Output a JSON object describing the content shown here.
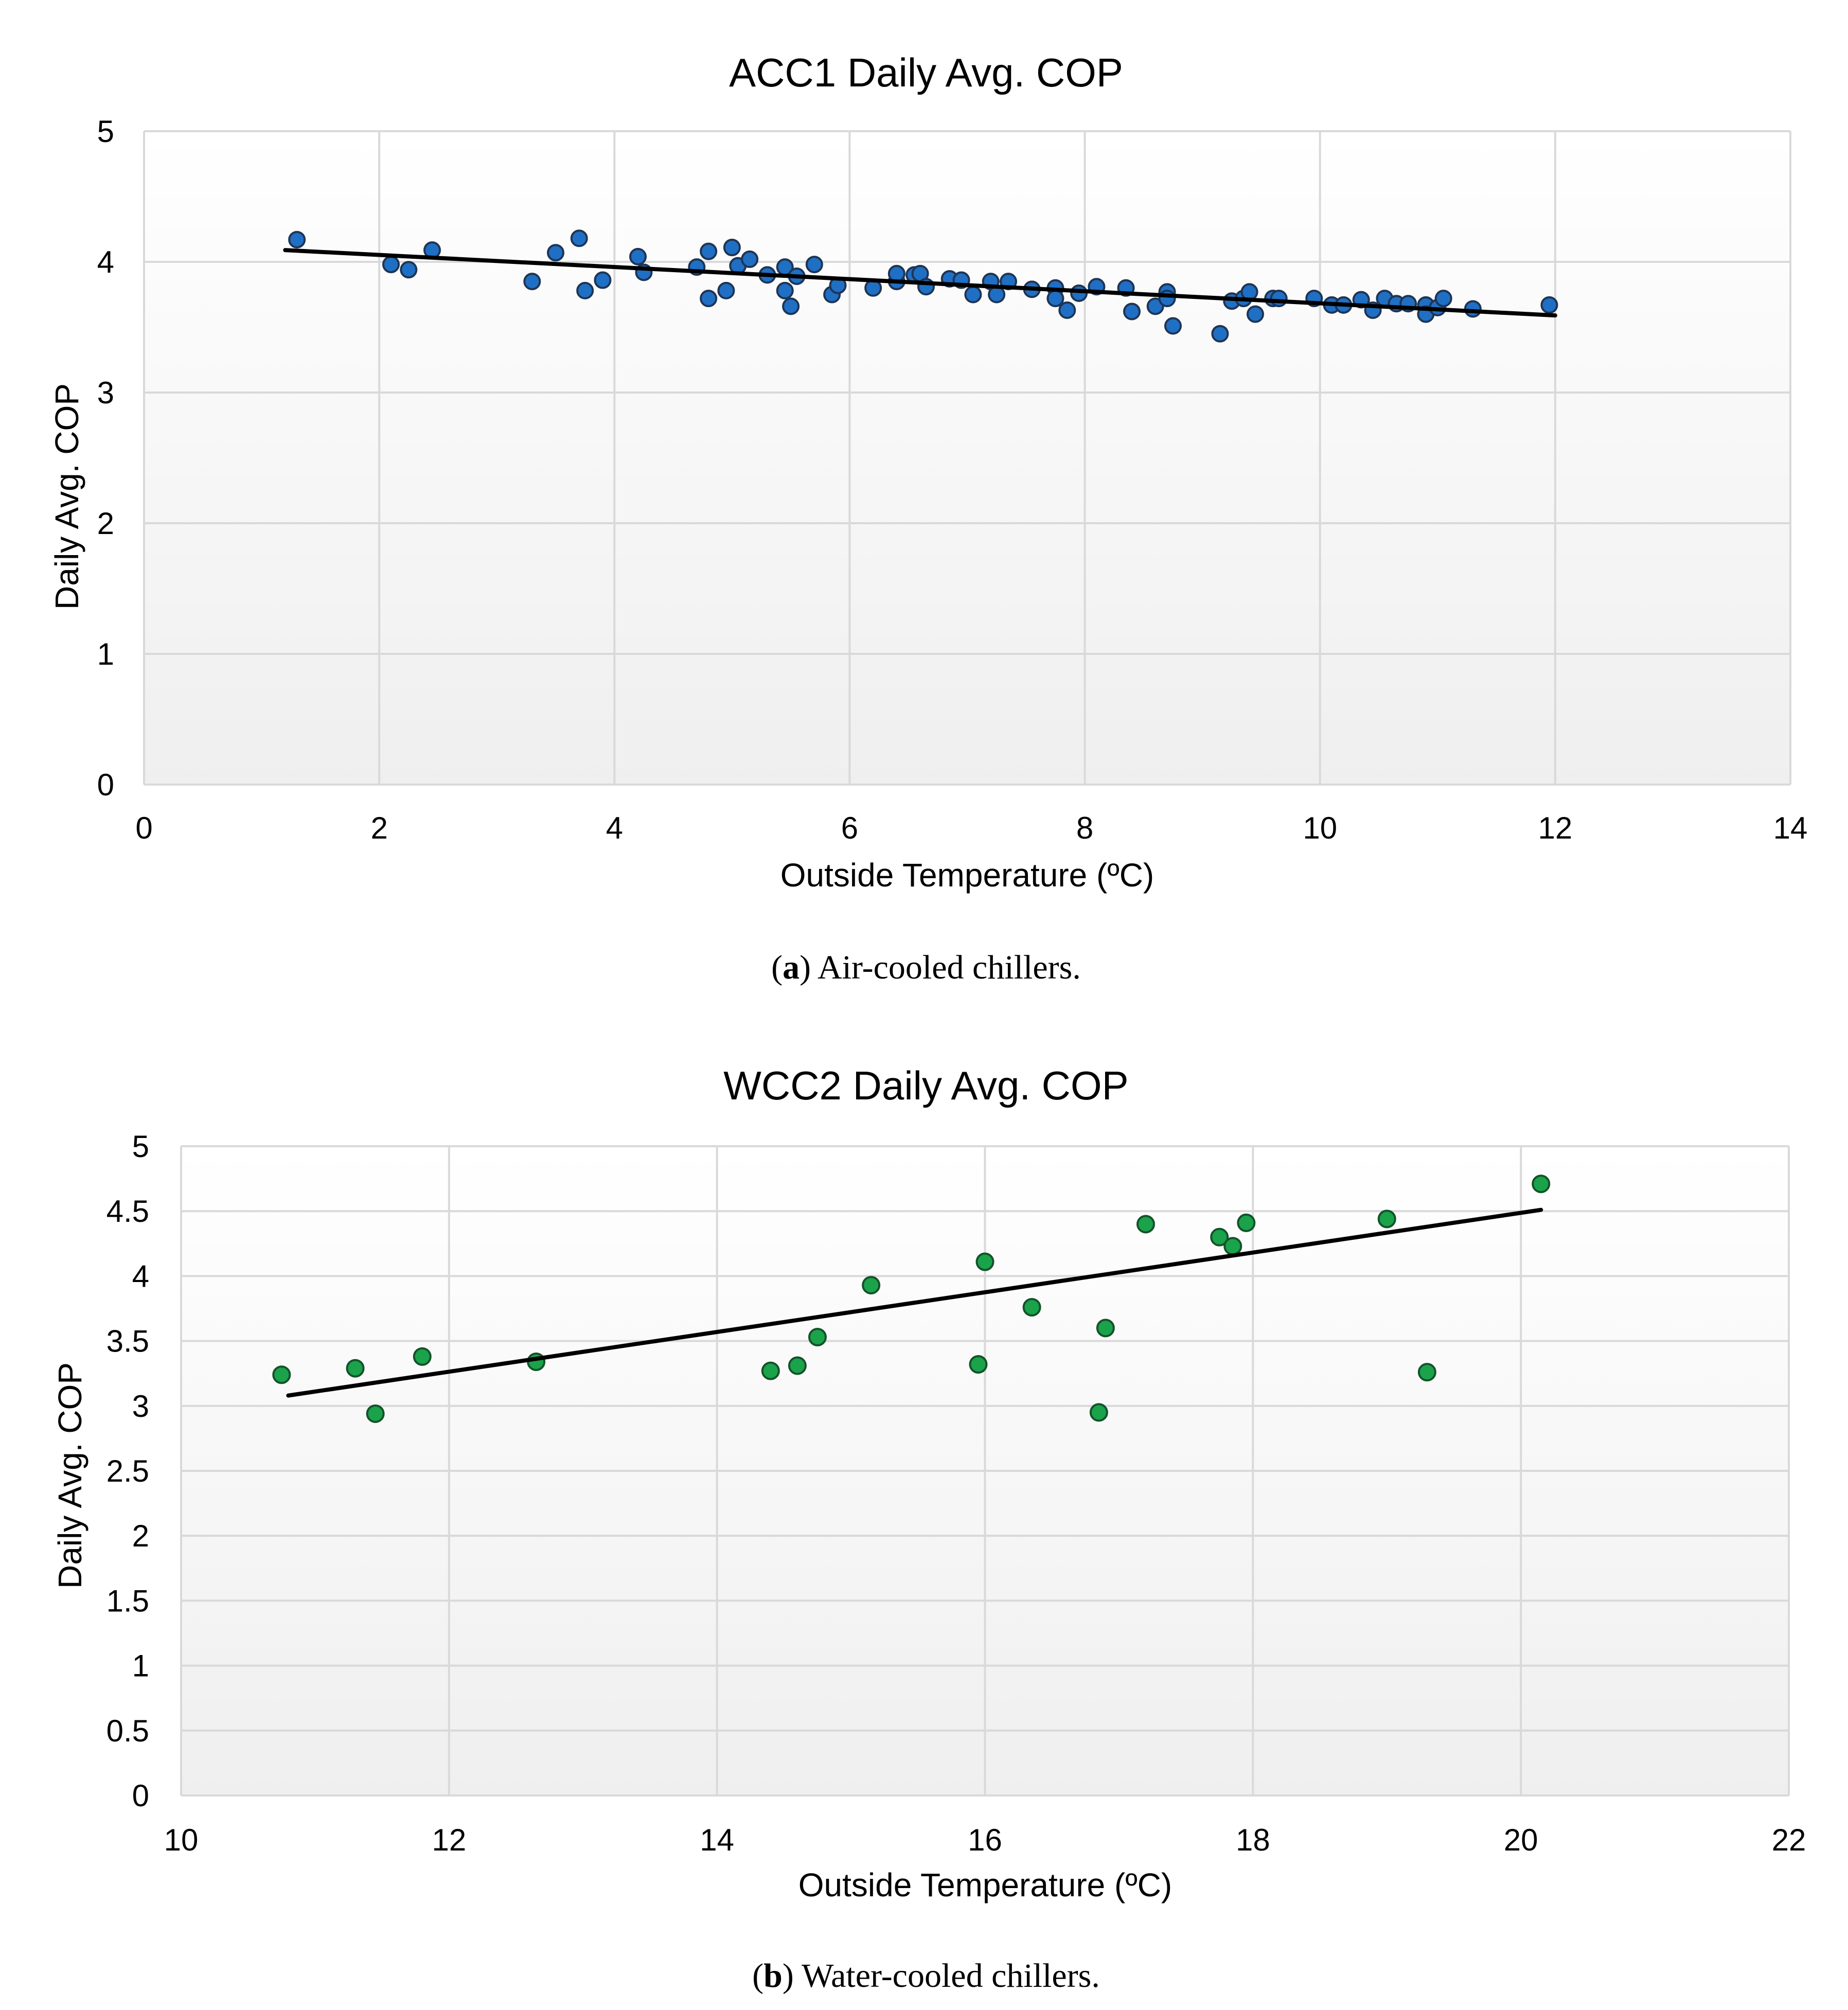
{
  "figure": {
    "charts": [
      {
        "id": "a",
        "caption": {
          "open": "(",
          "letter": "a",
          "close": ")",
          "text": " Air-cooled chillers."
        }
      },
      {
        "id": "b",
        "caption": {
          "open": "(",
          "letter": "b",
          "close": ")",
          "text": " Water-cooled chillers."
        }
      }
    ]
  },
  "colors": {
    "panel_top": "#ffffff",
    "panel_bottom": "#efefef",
    "grid": "#d9d9d9",
    "trendline": "#000000",
    "marker_edge": "#1f3554",
    "acc_marker": "#1f6fc5",
    "wcc_marker": "#1aa34a",
    "wcc_marker_edge": "#14522a"
  },
  "chart_data": [
    {
      "type": "scatter",
      "title": "ACC1 Daily Avg. COP",
      "xlabel": "Outside Temperature (ºC)",
      "ylabel": "Daily Avg. COP",
      "xlim": [
        0,
        14
      ],
      "ylim": [
        0,
        5
      ],
      "xticks": [
        "0",
        "2",
        "4",
        "6",
        "8",
        "10",
        "12",
        "14"
      ],
      "yticks": [
        "0",
        "1",
        "2",
        "3",
        "4",
        "5"
      ],
      "grid": true,
      "legend": "none",
      "marker_color": "#1f6fc5",
      "trendline": {
        "x": [
          1.2,
          12.0
        ],
        "y": [
          4.09,
          3.59
        ]
      },
      "series": [
        {
          "name": "ACC1",
          "points": [
            [
              1.3,
              4.17
            ],
            [
              2.1,
              3.98
            ],
            [
              2.25,
              3.94
            ],
            [
              2.45,
              4.09
            ],
            [
              3.3,
              3.85
            ],
            [
              3.5,
              4.07
            ],
            [
              3.7,
              4.18
            ],
            [
              3.75,
              3.78
            ],
            [
              3.9,
              3.86
            ],
            [
              4.2,
              4.04
            ],
            [
              4.25,
              3.92
            ],
            [
              4.7,
              3.96
            ],
            [
              4.8,
              3.72
            ],
            [
              4.8,
              4.08
            ],
            [
              4.95,
              3.78
            ],
            [
              5.0,
              4.11
            ],
            [
              5.05,
              3.97
            ],
            [
              5.15,
              4.02
            ],
            [
              5.3,
              3.9
            ],
            [
              5.45,
              3.78
            ],
            [
              5.45,
              3.96
            ],
            [
              5.5,
              3.66
            ],
            [
              5.55,
              3.89
            ],
            [
              5.7,
              3.98
            ],
            [
              5.85,
              3.75
            ],
            [
              5.9,
              3.82
            ],
            [
              6.2,
              3.8
            ],
            [
              6.4,
              3.85
            ],
            [
              6.4,
              3.91
            ],
            [
              6.55,
              3.9
            ],
            [
              6.6,
              3.91
            ],
            [
              6.65,
              3.81
            ],
            [
              6.85,
              3.87
            ],
            [
              6.95,
              3.86
            ],
            [
              7.05,
              3.75
            ],
            [
              7.2,
              3.85
            ],
            [
              7.25,
              3.75
            ],
            [
              7.35,
              3.85
            ],
            [
              7.55,
              3.79
            ],
            [
              7.75,
              3.8
            ],
            [
              7.75,
              3.72
            ],
            [
              7.85,
              3.63
            ],
            [
              7.95,
              3.76
            ],
            [
              8.1,
              3.81
            ],
            [
              8.35,
              3.8
            ],
            [
              8.4,
              3.62
            ],
            [
              8.6,
              3.66
            ],
            [
              8.7,
              3.77
            ],
            [
              8.7,
              3.72
            ],
            [
              8.75,
              3.51
            ],
            [
              9.15,
              3.45
            ],
            [
              9.25,
              3.7
            ],
            [
              9.35,
              3.72
            ],
            [
              9.4,
              3.77
            ],
            [
              9.45,
              3.6
            ],
            [
              9.6,
              3.72
            ],
            [
              9.65,
              3.72
            ],
            [
              9.95,
              3.72
            ],
            [
              10.1,
              3.67
            ],
            [
              10.2,
              3.67
            ],
            [
              10.35,
              3.71
            ],
            [
              10.45,
              3.63
            ],
            [
              10.55,
              3.72
            ],
            [
              10.65,
              3.68
            ],
            [
              10.75,
              3.68
            ],
            [
              10.9,
              3.67
            ],
            [
              10.9,
              3.6
            ],
            [
              11.0,
              3.65
            ],
            [
              11.05,
              3.72
            ],
            [
              11.3,
              3.64
            ],
            [
              11.95,
              3.67
            ]
          ]
        }
      ]
    },
    {
      "type": "scatter",
      "title": "WCC2 Daily Avg. COP",
      "xlabel": "Outside Temperature (ºC)",
      "ylabel": "Daily Avg. COP",
      "xlim": [
        10,
        22
      ],
      "ylim": [
        0,
        5
      ],
      "xticks": [
        "10",
        "12",
        "14",
        "16",
        "18",
        "20",
        "22"
      ],
      "yticks": [
        "0",
        "0.5",
        "1",
        "1.5",
        "2",
        "2.5",
        "3",
        "3.5",
        "4",
        "4.5",
        "5"
      ],
      "grid": true,
      "legend": "none",
      "marker_color": "#1aa34a",
      "trendline": {
        "x": [
          10.8,
          20.15
        ],
        "y": [
          3.08,
          4.51
        ]
      },
      "series": [
        {
          "name": "WCC2",
          "points": [
            [
              10.75,
              3.24
            ],
            [
              11.3,
              3.29
            ],
            [
              11.45,
              2.94
            ],
            [
              11.8,
              3.38
            ],
            [
              12.65,
              3.34
            ],
            [
              14.4,
              3.27
            ],
            [
              14.6,
              3.31
            ],
            [
              14.75,
              3.53
            ],
            [
              15.15,
              3.93
            ],
            [
              15.95,
              3.32
            ],
            [
              16.0,
              4.11
            ],
            [
              16.35,
              3.76
            ],
            [
              16.85,
              2.95
            ],
            [
              16.9,
              3.6
            ],
            [
              17.2,
              4.4
            ],
            [
              17.75,
              4.3
            ],
            [
              17.85,
              4.23
            ],
            [
              17.95,
              4.41
            ],
            [
              19.0,
              4.44
            ],
            [
              19.3,
              3.26
            ],
            [
              20.15,
              4.71
            ]
          ]
        }
      ]
    }
  ]
}
